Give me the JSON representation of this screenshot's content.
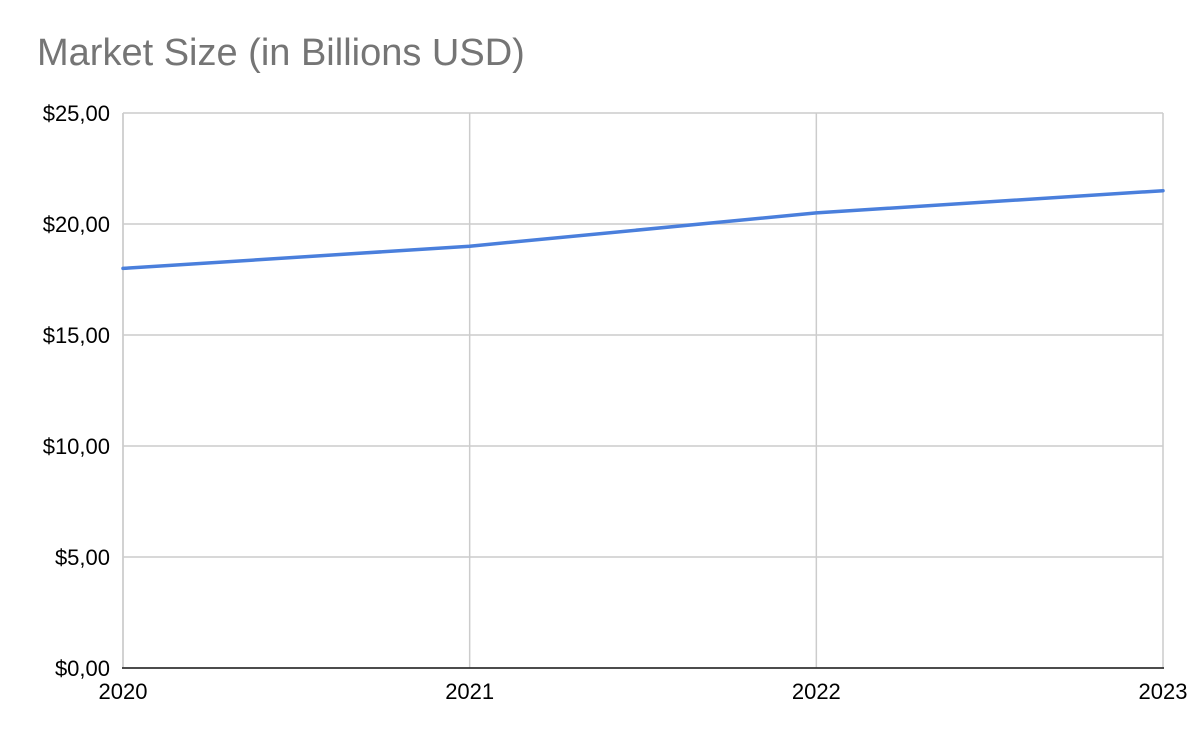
{
  "chart_data": {
    "type": "line",
    "title": "Market Size (in Billions USD)",
    "xlabel": "",
    "ylabel": "",
    "categories": [
      "2020",
      "2021",
      "2022",
      "2023"
    ],
    "series": [
      {
        "values": [
          18.0,
          19.0,
          20.5,
          21.5
        ],
        "color": "#4a7fdc"
      }
    ],
    "ylim": [
      0,
      25
    ],
    "yticks": [
      0,
      5,
      10,
      15,
      20,
      25
    ],
    "ytick_labels": [
      "$0,00",
      "$5,00",
      "$10,00",
      "$15,00",
      "$20,00",
      "$25,00"
    ],
    "grid": true,
    "legend": "none"
  }
}
